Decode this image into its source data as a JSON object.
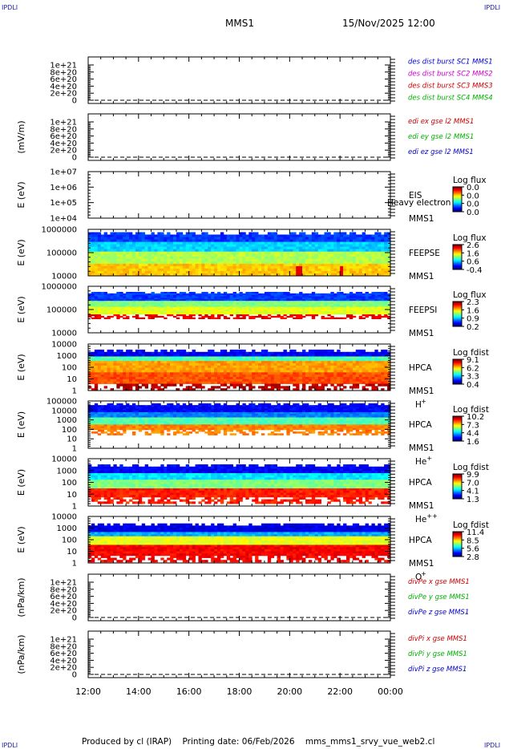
{
  "header": {
    "corner_tl": "IPDLI",
    "corner_tr": "IPDLI",
    "corner_bl": "IPDLI",
    "corner_br": "IPDLI",
    "mission": "MMS1",
    "datetime": "15/Nov/2025 12:00"
  },
  "footer": {
    "produced_by": "Produced by cl (IRAP)",
    "printing_date": "Printing date: 06/Feb/2026",
    "filename": "mms_mms1_srvy_vue_web2.cl"
  },
  "chart_data": {
    "type": "stacked-panels",
    "x_ticks": [
      "12:00",
      "14:00",
      "16:00",
      "18:00",
      "20:00",
      "22:00",
      "00:00"
    ],
    "x_range": [
      "15/Nov/2025 12:00",
      "16/Nov/2025 00:00"
    ],
    "panels": [
      {
        "kind": "line",
        "ylabel": "",
        "yticks": [
          "1e+21",
          "8e+20",
          "6e+20",
          "4e+20",
          "2e+20",
          "0"
        ],
        "ylim": [
          0,
          1.05e+21
        ],
        "zero_line": true,
        "legend": [
          {
            "label": "des dist burst SC1 MMS1",
            "color": "#0000cc"
          },
          {
            "label": "des dist burst SC2 MMS2",
            "color": "#cc00cc"
          },
          {
            "label": "des dist burst SC3 MMS3",
            "color": "#cc0000"
          },
          {
            "label": "des dist burst SC4 MMS4",
            "color": "#00b000"
          }
        ]
      },
      {
        "kind": "line",
        "ylabel": "(mV/m)",
        "yticks": [
          "1e+21",
          "8e+20",
          "6e+20",
          "4e+20",
          "2e+20",
          "0"
        ],
        "ylim": [
          0,
          1.05e+21
        ],
        "zero_line": true,
        "legend": [
          {
            "label": "edi ex gse l2 MMS1",
            "color": "#cc0000"
          },
          {
            "label": "edi ey gse l2 MMS1",
            "color": "#00b000"
          },
          {
            "label": "edi ez gse l2 MMS1",
            "color": "#0000cc"
          }
        ]
      },
      {
        "kind": "spectrogram",
        "ylabel": "E (eV)",
        "yticks": [
          "1e+07",
          "1e+06",
          "1e+05",
          "1e+04"
        ],
        "filled": false,
        "labels": [
          "EIS",
          "MMS1"
        ],
        "overlay": "Heavy electron to",
        "cbar_title": "Log flux",
        "cbar_ticks": [
          "0.0",
          "0.0",
          "0.0",
          "0.0"
        ]
      },
      {
        "kind": "spectrogram",
        "ylabel": "E (eV)",
        "yticks": [
          "1000000",
          "100000",
          "10000"
        ],
        "filled": true,
        "instrument": "FEEPSE",
        "labels": [
          "FEEPSE",
          "MMS1"
        ],
        "cbar_title": "Log flux",
        "cbar_ticks": [
          "2.6",
          "1.6",
          "0.6",
          "-0.4"
        ]
      },
      {
        "kind": "spectrogram",
        "ylabel": "E (eV)",
        "yticks": [
          "1000000",
          "100000",
          "10000"
        ],
        "filled": true,
        "instrument": "FEEPSI",
        "labels": [
          "FEEPSI",
          "MMS1"
        ],
        "cbar_title": "Log flux",
        "cbar_ticks": [
          "2.3",
          "1.6",
          "0.9",
          "0.2"
        ]
      },
      {
        "kind": "spectrogram",
        "ylabel": "E (eV)",
        "yticks": [
          "10000",
          "1000",
          "100",
          "10",
          "1"
        ],
        "filled": true,
        "instrument": "H",
        "labels": [
          "HPCA",
          "MMS1"
        ],
        "species": "H",
        "charge": "+",
        "cbar_title": "Log fdist",
        "cbar_ticks": [
          "9.1",
          "6.2",
          "3.3",
          "0.4"
        ]
      },
      {
        "kind": "spectrogram",
        "ylabel": "E (eV)",
        "yticks": [
          "100000",
          "10000",
          "1000",
          "100",
          "10",
          "1"
        ],
        "filled": true,
        "instrument": "He",
        "labels": [
          "HPCA",
          "MMS1"
        ],
        "species": "He",
        "charge": "+",
        "cbar_title": "Log fdist",
        "cbar_ticks": [
          "10.2",
          "7.3",
          "4.4",
          "1.6"
        ]
      },
      {
        "kind": "spectrogram",
        "ylabel": "E (eV)",
        "yticks": [
          "10000",
          "1000",
          "100",
          "10",
          "1"
        ],
        "filled": true,
        "instrument": "He2",
        "labels": [
          "HPCA",
          "MMS1"
        ],
        "species": "He",
        "charge": "++",
        "cbar_title": "Log fdist",
        "cbar_ticks": [
          "9.9",
          "7.0",
          "4.1",
          "1.3"
        ]
      },
      {
        "kind": "spectrogram",
        "ylabel": "E (eV)",
        "yticks": [
          "10000",
          "1000",
          "100",
          "10",
          "1"
        ],
        "filled": true,
        "instrument": "O",
        "labels": [
          "HPCA",
          "MMS1"
        ],
        "species": "O",
        "charge": "+",
        "cbar_title": "Log fdist",
        "cbar_ticks": [
          "11.4",
          "8.5",
          "5.6",
          "2.8"
        ]
      },
      {
        "kind": "line",
        "ylabel": "(nPa/km)",
        "yticks": [
          "1e+21",
          "8e+20",
          "6e+20",
          "4e+20",
          "2e+20",
          "0"
        ],
        "ylim": [
          0,
          1.05e+21
        ],
        "zero_line": true,
        "legend": [
          {
            "label": "divPe x gse MMS1",
            "color": "#cc0000"
          },
          {
            "label": "divPe y gse MMS1",
            "color": "#00b000"
          },
          {
            "label": "divPe z gse MMS1",
            "color": "#0000cc"
          }
        ]
      },
      {
        "kind": "line",
        "ylabel": "(nPa/km)",
        "yticks": [
          "1e+21",
          "8e+20",
          "6e+20",
          "4e+20",
          "2e+20",
          "0"
        ],
        "ylim": [
          0,
          1.05e+21
        ],
        "zero_line": true,
        "legend": [
          {
            "label": "divPi x gse MMS1",
            "color": "#cc0000"
          },
          {
            "label": "divPi y gse MMS1",
            "color": "#00b000"
          },
          {
            "label": "divPi z gse MMS1",
            "color": "#0000cc"
          }
        ]
      }
    ]
  }
}
